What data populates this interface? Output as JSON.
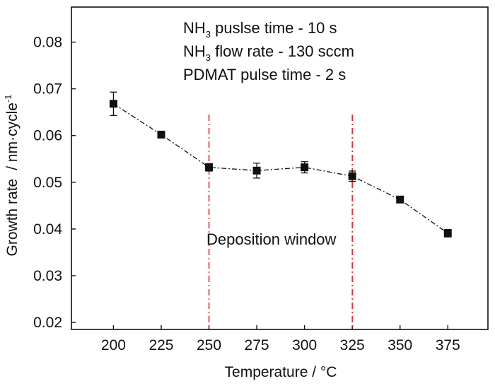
{
  "chart_data": {
    "type": "line",
    "xlabel": "Temperature / °C",
    "ylabel_main": "Growth rate",
    "ylabel_unit_prefix": "/ nm·cycle",
    "ylabel_unit_sup": "-1",
    "xlim": [
      178,
      396
    ],
    "ylim": [
      0.0185,
      0.0875
    ],
    "xticks": [
      200,
      225,
      250,
      275,
      300,
      325,
      350,
      375
    ],
    "yticks": [
      0.02,
      0.03,
      0.04,
      0.05,
      0.06,
      0.07,
      0.08
    ],
    "ytick_labels": [
      "0.02",
      "0.03",
      "0.04",
      "0.05",
      "0.06",
      "0.07",
      "0.08"
    ],
    "grid": false,
    "series": [
      {
        "x": [
          200,
          225,
          250,
          275,
          300,
          325,
          350,
          375
        ],
        "y": [
          0.0668,
          0.0602,
          0.0532,
          0.0525,
          0.0532,
          0.0513,
          0.0463,
          0.0391
        ],
        "err": [
          0.0025,
          0.0003,
          0.0008,
          0.0016,
          0.0012,
          0.0011,
          0.0003,
          0.0008
        ],
        "color": "#111111",
        "marker": "square",
        "line_style": "dash-dot"
      }
    ],
    "window_lines": {
      "x": [
        250,
        325
      ],
      "color": "#e8282e",
      "style": "dash-dot"
    },
    "annotations": {
      "line1_pre": "NH",
      "line1_sub": "3",
      "line1_post": " puslse time - 10 s",
      "line2_pre": "NH",
      "line2_sub": "3",
      "line2_post": " flow rate - 130 sccm",
      "line3": "PDMAT pulse time - 2 s",
      "window_label": "Deposition window"
    }
  }
}
